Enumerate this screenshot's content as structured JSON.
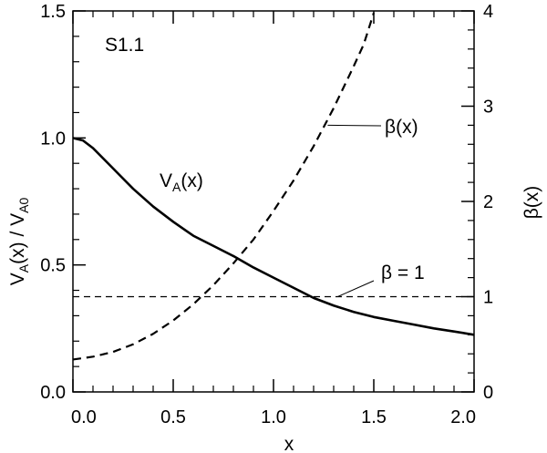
{
  "chart_data": {
    "type": "line",
    "panel_label": "S1.1",
    "xlabel": "x",
    "ylabel_left": {
      "main": "V",
      "sub1": "A",
      "mid": "(x) / V",
      "sub2": "A0"
    },
    "ylabel_right": "β(x)",
    "xlim": [
      0.0,
      2.0
    ],
    "ylim_left": [
      0.0,
      1.5
    ],
    "ylim_right": [
      0,
      4
    ],
    "x_ticks": [
      "0.0",
      "0.5",
      "1.0",
      "1.5",
      "2.0"
    ],
    "y_ticks_left": [
      "0.0",
      "0.5",
      "1.0",
      "1.5"
    ],
    "y_ticks_right": [
      "0",
      "1",
      "2",
      "3",
      "4"
    ],
    "grid": false,
    "series": [
      {
        "label_main": "V",
        "label_sub": "A",
        "label_tail": "(x)",
        "axis": "left",
        "style": "solid",
        "x": [
          0.0,
          0.05,
          0.1,
          0.15,
          0.2,
          0.3,
          0.4,
          0.5,
          0.6,
          0.7,
          0.8,
          0.9,
          1.0,
          1.1,
          1.2,
          1.3,
          1.4,
          1.5,
          1.6,
          1.7,
          1.8,
          1.9,
          2.0
        ],
        "y": [
          1.0,
          0.99,
          0.96,
          0.92,
          0.88,
          0.8,
          0.73,
          0.67,
          0.615,
          0.575,
          0.535,
          0.49,
          0.45,
          0.41,
          0.37,
          0.34,
          0.315,
          0.295,
          0.28,
          0.265,
          0.25,
          0.238,
          0.225
        ]
      },
      {
        "label": "β(x)",
        "axis": "right",
        "style": "dashed",
        "x": [
          0.0,
          0.1,
          0.2,
          0.3,
          0.4,
          0.5,
          0.6,
          0.7,
          0.8,
          0.9,
          1.0,
          1.1,
          1.2,
          1.3,
          1.4,
          1.45,
          1.5
        ],
        "y": [
          0.34,
          0.37,
          0.42,
          0.5,
          0.61,
          0.75,
          0.92,
          1.12,
          1.35,
          1.6,
          1.9,
          2.22,
          2.58,
          2.98,
          3.42,
          3.65,
          3.98
        ]
      },
      {
        "label": "β = 1",
        "axis": "right",
        "style": "dashed-thin",
        "x": [
          0.0,
          2.0
        ],
        "y": [
          1.0,
          1.0
        ]
      }
    ]
  }
}
